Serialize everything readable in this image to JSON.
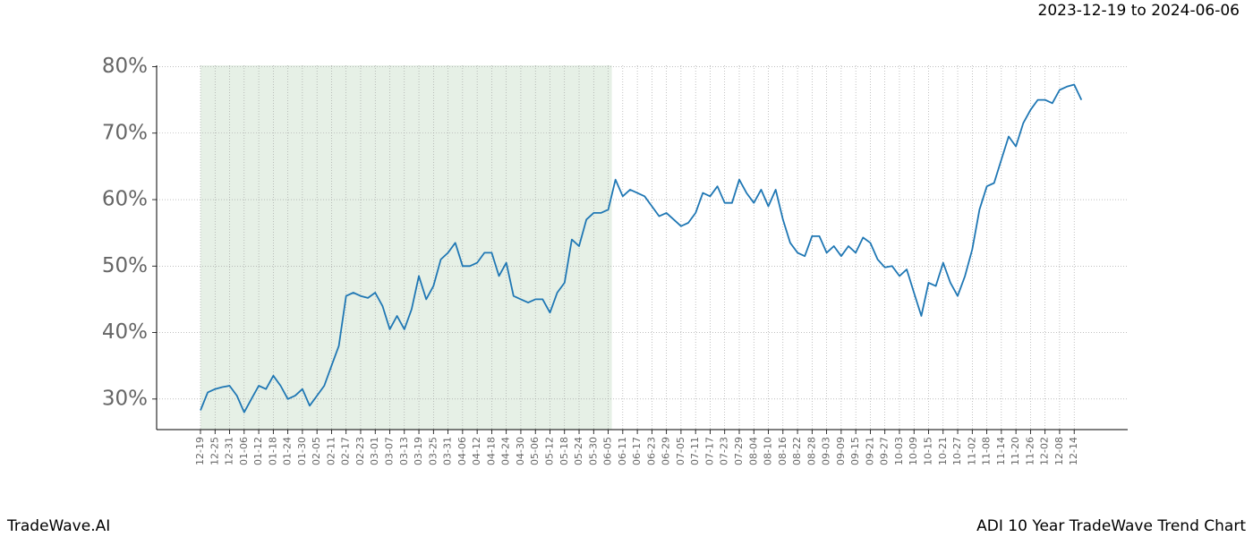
{
  "chart_data": {
    "type": "line",
    "title": "2023-12-19 to 2024-06-06",
    "footer_left": "TradeWave.AI",
    "footer_right": "ADI 10 Year TradeWave Trend Chart",
    "x": [
      "12-19",
      null,
      "12-25",
      null,
      "12-31",
      null,
      "01-06",
      null,
      "01-12",
      null,
      "01-18",
      null,
      "01-24",
      null,
      "01-30",
      null,
      "02-05",
      null,
      "02-11",
      null,
      "02-17",
      null,
      "02-23",
      null,
      "03-01",
      null,
      "03-07",
      null,
      "03-13",
      null,
      "03-19",
      null,
      "03-25",
      null,
      "03-31",
      null,
      "04-06",
      null,
      "04-12",
      null,
      "04-18",
      null,
      "04-24",
      null,
      "04-30",
      null,
      "05-06",
      null,
      "05-12",
      null,
      "05-18",
      null,
      "05-24",
      null,
      "05-30",
      null,
      "06-05",
      null,
      "06-11",
      null,
      "06-17",
      null,
      "06-23",
      null,
      "06-29",
      null,
      "07-05",
      null,
      "07-11",
      null,
      "07-17",
      null,
      "07-23",
      null,
      "07-29",
      null,
      "08-04",
      null,
      "08-10",
      null,
      "08-16",
      null,
      "08-22",
      null,
      "08-28",
      null,
      "09-03",
      null,
      "09-09",
      null,
      "09-15",
      null,
      "09-21",
      null,
      "09-27",
      null,
      "10-03",
      null,
      "10-09",
      null,
      "10-15",
      null,
      "10-21",
      null,
      "10-27",
      null,
      "11-02",
      null,
      "11-08",
      null,
      "11-14",
      null,
      "11-20",
      null,
      "11-26",
      null,
      "12-02",
      null,
      "12-08",
      null,
      "12-14",
      null
    ],
    "series": [
      {
        "color": "#1f77b4",
        "values": [
          28.3,
          31,
          31.5,
          31.8,
          32,
          30.5,
          28,
          30,
          32,
          31.5,
          33.5,
          32,
          30,
          30.5,
          31.5,
          29,
          30.5,
          32,
          35,
          38,
          45.5,
          46,
          45.5,
          45.2,
          46,
          44,
          40.5,
          42.5,
          40.5,
          43.5,
          48.5,
          45,
          47,
          51,
          52,
          53.5,
          50,
          50,
          50.5,
          52,
          52,
          48.5,
          50.5,
          45.5,
          45,
          44.5,
          45,
          45,
          43,
          46,
          47.5,
          54,
          53,
          57,
          58,
          58,
          58.5,
          63,
          60.5,
          61.5,
          61,
          60.5,
          59,
          57.5,
          58,
          57,
          56,
          56.5,
          58,
          61,
          60.5,
          62,
          59.5,
          59.5,
          63,
          61,
          59.5,
          61.5,
          59,
          61.5,
          57,
          53.5,
          52,
          51.5,
          54.5,
          54.5,
          52,
          53,
          51.5,
          53,
          52,
          54.3,
          53.5,
          51,
          49.8,
          50,
          48.5,
          49.5,
          46,
          42.5,
          47.5,
          47,
          50.5,
          47.5,
          45.5,
          48.5,
          52.5,
          58.5,
          62,
          62.5,
          66,
          69.5,
          68,
          71.5,
          73.5,
          75,
          75,
          74.5,
          76.5,
          77,
          77.3,
          75
        ]
      }
    ],
    "shaded_span": [
      0,
      56.5
    ],
    "shade_color": "#e6f0e6",
    "ylim": [
      25.4,
      80.2
    ],
    "yticks": [
      {
        "value": 30,
        "label": "30%"
      },
      {
        "value": 40,
        "label": "40%"
      },
      {
        "value": 50,
        "label": "50%"
      },
      {
        "value": 60,
        "label": "60%"
      },
      {
        "value": 70,
        "label": "70%"
      },
      {
        "value": 80,
        "label": "80%"
      }
    ],
    "grid": true
  }
}
